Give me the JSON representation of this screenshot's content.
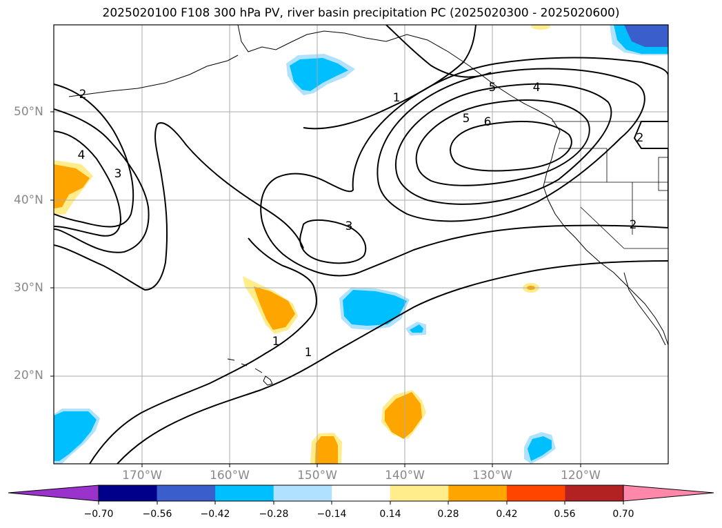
{
  "title": "2025020100 F108 300 hPa PV, river basin precipitation PC (2025020300 - 2025020600)",
  "map": {
    "lat_labels": [
      "50°N",
      "40°N",
      "30°N",
      "20°N"
    ],
    "lon_labels": [
      "170°W",
      "160°W",
      "150°W",
      "140°W",
      "130°W",
      "120°W"
    ],
    "contour_labels": [
      "1",
      "1",
      "1",
      "2",
      "2",
      "2",
      "3",
      "3",
      "4",
      "4",
      "5",
      "5",
      "6"
    ]
  },
  "colorbar": {
    "colors": [
      "#9933cc",
      "#00008b",
      "#3a5fcd",
      "#00bfff",
      "#b0e2ff",
      "#ffffff",
      "#ffec8b",
      "#ffa500",
      "#ff4500",
      "#b22222",
      "#ff88aa"
    ],
    "ticks": [
      "−0.70",
      "−0.56",
      "−0.42",
      "−0.28",
      "−0.14",
      "0.14",
      "0.28",
      "0.42",
      "0.56",
      "0.70"
    ]
  }
}
